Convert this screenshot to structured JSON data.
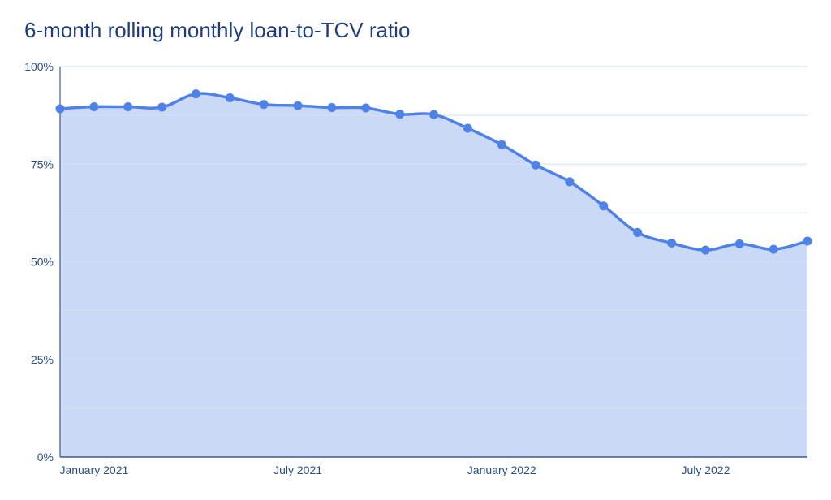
{
  "chart_data": {
    "type": "area",
    "title": "6-month rolling monthly loan-to-TCV ratio",
    "xlabel": "",
    "ylabel": "",
    "ylim": [
      0,
      100
    ],
    "y_ticks": [
      {
        "value": 0,
        "label": "0%"
      },
      {
        "value": 25,
        "label": "25%"
      },
      {
        "value": 50,
        "label": "50%"
      },
      {
        "value": 75,
        "label": "75%"
      },
      {
        "value": 100,
        "label": "100%"
      }
    ],
    "x_ticks": [
      {
        "index": 1,
        "label": "January 2021"
      },
      {
        "index": 7,
        "label": "July 2021"
      },
      {
        "index": 13,
        "label": "January 2022"
      },
      {
        "index": 19,
        "label": "July 2022"
      }
    ],
    "grid": true,
    "series": [
      {
        "values": [
          89.2,
          89.7,
          89.7,
          89.6,
          93.0,
          92.0,
          90.3,
          90.0,
          89.5,
          89.4,
          87.8,
          87.7,
          84.2,
          80.0,
          74.8,
          70.5,
          64.3,
          57.5,
          54.8,
          53.0,
          54.6,
          53.2,
          55.3
        ]
      }
    ],
    "colors": {
      "line": "#4f82e8",
      "fill": "#c9d9f6",
      "grid": "#d6e0f2",
      "axis": "#1f3d7a",
      "text": "#2d4f86"
    }
  }
}
